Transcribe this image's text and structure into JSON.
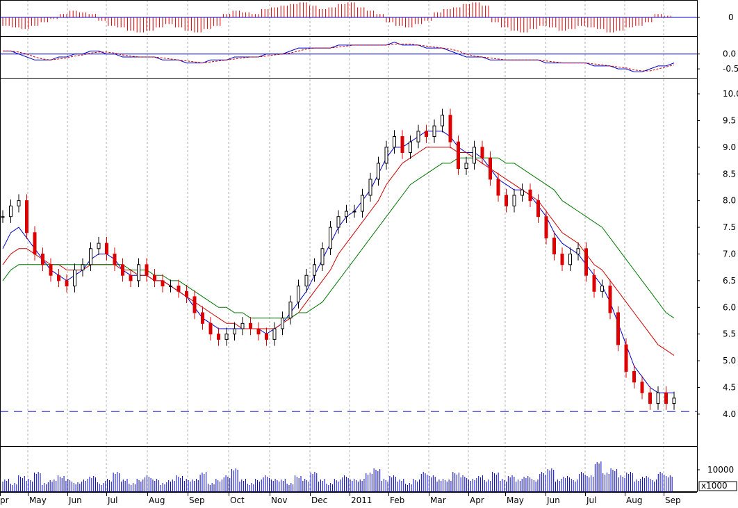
{
  "chart_data": {
    "type": "candlestick",
    "title": "",
    "xlabel": "",
    "ylabel": "",
    "ylim": [
      3.4,
      10.3
    ],
    "price_ticks": [
      "10.0",
      "9.5",
      "9.0",
      "8.5",
      "8.0",
      "7.5",
      "7.0",
      "6.5",
      "6.0",
      "5.5",
      "5.0",
      "4.5",
      "4.0"
    ],
    "macd_ticks": [
      "0.0",
      "-0.5"
    ],
    "osc_ticks": [
      "0"
    ],
    "volume_ticks": [
      "10000"
    ],
    "volume_unit": "x1000",
    "months": [
      "pr",
      "May",
      "Jun",
      "Jul",
      "Aug",
      "Sep",
      "Oct",
      "Nov",
      "Dec",
      "2011",
      "Feb",
      "Mar",
      "Apr",
      "May",
      "Jun",
      "Jul",
      "Aug",
      "Sep"
    ],
    "support_level": 4.05,
    "price_close": [
      7.7,
      7.9,
      8.0,
      7.4,
      7.0,
      6.8,
      6.6,
      6.5,
      6.4,
      6.7,
      6.8,
      7.1,
      7.2,
      7.0,
      6.8,
      6.6,
      6.5,
      6.8,
      6.6,
      6.5,
      6.4,
      6.4,
      6.3,
      6.2,
      5.9,
      5.7,
      5.5,
      5.4,
      5.5,
      5.6,
      5.7,
      5.6,
      5.5,
      5.4,
      5.6,
      5.8,
      6.1,
      6.4,
      6.6,
      6.8,
      7.1,
      7.5,
      7.7,
      7.8,
      7.8,
      8.1,
      8.4,
      8.7,
      9.0,
      9.2,
      8.9,
      9.1,
      9.3,
      9.2,
      9.4,
      9.6,
      9.1,
      8.6,
      8.7,
      9.0,
      8.8,
      8.4,
      8.1,
      7.9,
      8.1,
      8.2,
      8.0,
      7.7,
      7.3,
      7.0,
      6.8,
      7.0,
      7.1,
      6.6,
      6.3,
      6.4,
      5.9,
      5.3,
      4.8,
      4.6,
      4.4,
      4.2,
      4.4,
      4.2,
      4.3
    ],
    "series": [
      {
        "name": "",
        "color": "#0000cc",
        "values": [
          7.1,
          7.4,
          7.5,
          7.3,
          7.1,
          6.9,
          6.7,
          6.6,
          6.5,
          6.6,
          6.7,
          6.9,
          7.0,
          7.0,
          6.9,
          6.7,
          6.6,
          6.6,
          6.6,
          6.5,
          6.5,
          6.4,
          6.3,
          6.2,
          6.0,
          5.8,
          5.7,
          5.6,
          5.6,
          5.6,
          5.6,
          5.6,
          5.6,
          5.5,
          5.6,
          5.7,
          5.9,
          6.1,
          6.3,
          6.6,
          6.9,
          7.2,
          7.5,
          7.7,
          7.8,
          8.0,
          8.2,
          8.5,
          8.8,
          9.0,
          9.0,
          9.1,
          9.2,
          9.3,
          9.3,
          9.3,
          9.2,
          9.0,
          8.9,
          8.9,
          8.8,
          8.6,
          8.4,
          8.3,
          8.2,
          8.2,
          8.1,
          7.9,
          7.7,
          7.4,
          7.2,
          7.1,
          7.0,
          6.8,
          6.6,
          6.4,
          6.1,
          5.7,
          5.3,
          4.9,
          4.7,
          4.5,
          4.4,
          4.4,
          4.4
        ]
      },
      {
        "name": "",
        "color": "#cc0000",
        "values": [
          6.8,
          7.0,
          7.1,
          7.1,
          7.0,
          6.9,
          6.8,
          6.8,
          6.7,
          6.7,
          6.7,
          6.8,
          6.8,
          6.8,
          6.8,
          6.7,
          6.7,
          6.6,
          6.6,
          6.5,
          6.5,
          6.4,
          6.3,
          6.2,
          6.1,
          6.0,
          5.9,
          5.8,
          5.7,
          5.7,
          5.6,
          5.6,
          5.6,
          5.6,
          5.6,
          5.7,
          5.8,
          5.9,
          6.1,
          6.3,
          6.5,
          6.7,
          7.0,
          7.2,
          7.4,
          7.6,
          7.8,
          8.0,
          8.3,
          8.5,
          8.7,
          8.8,
          8.9,
          9.0,
          9.0,
          9.0,
          9.0,
          8.9,
          8.9,
          8.8,
          8.7,
          8.6,
          8.5,
          8.4,
          8.3,
          8.2,
          8.1,
          8.0,
          7.8,
          7.6,
          7.4,
          7.3,
          7.2,
          7.0,
          6.8,
          6.7,
          6.5,
          6.3,
          6.1,
          5.9,
          5.7,
          5.5,
          5.3,
          5.2,
          5.1
        ]
      },
      {
        "name": "",
        "color": "#007700",
        "values": [
          6.5,
          6.7,
          6.8,
          6.8,
          6.8,
          6.8,
          6.8,
          6.8,
          6.8,
          6.8,
          6.8,
          6.8,
          6.8,
          6.8,
          6.8,
          6.8,
          6.7,
          6.7,
          6.7,
          6.6,
          6.6,
          6.5,
          6.5,
          6.4,
          6.3,
          6.2,
          6.1,
          6.0,
          6.0,
          5.9,
          5.9,
          5.8,
          5.8,
          5.8,
          5.8,
          5.8,
          5.8,
          5.9,
          5.9,
          6.0,
          6.1,
          6.3,
          6.5,
          6.7,
          6.9,
          7.1,
          7.3,
          7.5,
          7.7,
          7.9,
          8.1,
          8.3,
          8.4,
          8.5,
          8.6,
          8.7,
          8.7,
          8.8,
          8.8,
          8.8,
          8.8,
          8.8,
          8.8,
          8.7,
          8.7,
          8.6,
          8.5,
          8.4,
          8.3,
          8.2,
          8.0,
          7.9,
          7.8,
          7.7,
          7.6,
          7.5,
          7.3,
          7.1,
          6.9,
          6.7,
          6.5,
          6.3,
          6.1,
          5.9,
          5.8
        ]
      }
    ],
    "macd": [
      0.1,
      0.1,
      0.0,
      -0.1,
      -0.2,
      -0.2,
      -0.2,
      -0.1,
      -0.1,
      -0.0,
      0.0,
      0.1,
      0.1,
      0.0,
      -0.0,
      -0.1,
      -0.1,
      -0.1,
      -0.1,
      -0.1,
      -0.2,
      -0.2,
      -0.2,
      -0.3,
      -0.3,
      -0.3,
      -0.2,
      -0.2,
      -0.2,
      -0.1,
      -0.1,
      -0.1,
      -0.1,
      -0.0,
      -0.0,
      0.0,
      0.1,
      0.2,
      0.2,
      0.2,
      0.2,
      0.2,
      0.3,
      0.3,
      0.3,
      0.3,
      0.3,
      0.3,
      0.3,
      0.4,
      0.3,
      0.3,
      0.3,
      0.2,
      0.2,
      0.2,
      0.1,
      0.0,
      -0.1,
      -0.1,
      -0.1,
      -0.2,
      -0.2,
      -0.2,
      -0.2,
      -0.2,
      -0.2,
      -0.2,
      -0.3,
      -0.3,
      -0.3,
      -0.3,
      -0.3,
      -0.3,
      -0.4,
      -0.4,
      -0.4,
      -0.5,
      -0.5,
      -0.6,
      -0.6,
      -0.5,
      -0.4,
      -0.4,
      -0.3
    ],
    "histogram": [
      -0.5,
      -0.6,
      -0.7,
      -0.5,
      -0.3,
      -0.1,
      0.2,
      0.4,
      0.3,
      0.2,
      -0.2,
      -0.5,
      -0.6,
      -0.8,
      -0.9,
      -0.8,
      -0.6,
      -0.4,
      -0.6,
      -0.8,
      -0.9,
      -0.7,
      -0.5,
      0.2,
      0.4,
      0.3,
      0.2,
      0.5,
      0.6,
      0.7,
      0.8,
      0.9,
      0.7,
      0.5,
      0.6,
      0.8,
      0.9,
      0.6,
      0.4,
      0.2,
      -0.3,
      -0.5,
      -0.6,
      -0.4,
      -0.2,
      0.3,
      0.5,
      0.6,
      0.8,
      0.9,
      0.7,
      -0.3,
      -0.6,
      -0.8,
      -0.9,
      -0.7,
      -0.5,
      -0.6,
      -0.8,
      -0.7,
      -0.5,
      -0.6,
      -0.7,
      -0.9,
      -0.8,
      -0.6,
      -0.5,
      -0.3,
      0.2,
      0.1
    ],
    "volume": [
      3,
      2,
      4,
      3,
      5,
      2,
      3,
      4,
      3,
      2,
      3,
      4,
      2,
      3,
      5,
      3,
      2,
      3,
      4,
      3,
      2,
      3,
      4,
      3,
      3,
      5,
      2,
      3,
      4,
      6,
      3,
      2,
      3,
      4,
      3,
      3,
      2,
      4,
      3,
      5,
      3,
      2,
      3,
      4,
      3,
      3,
      5,
      6,
      3,
      4,
      3,
      2,
      3,
      5,
      4,
      3,
      3,
      5,
      4,
      3,
      4,
      3,
      5,
      3,
      4,
      3,
      4,
      3,
      5,
      6,
      3,
      4,
      3,
      5,
      4,
      8,
      5,
      6,
      4,
      5,
      3,
      4,
      3,
      5,
      4
    ]
  }
}
